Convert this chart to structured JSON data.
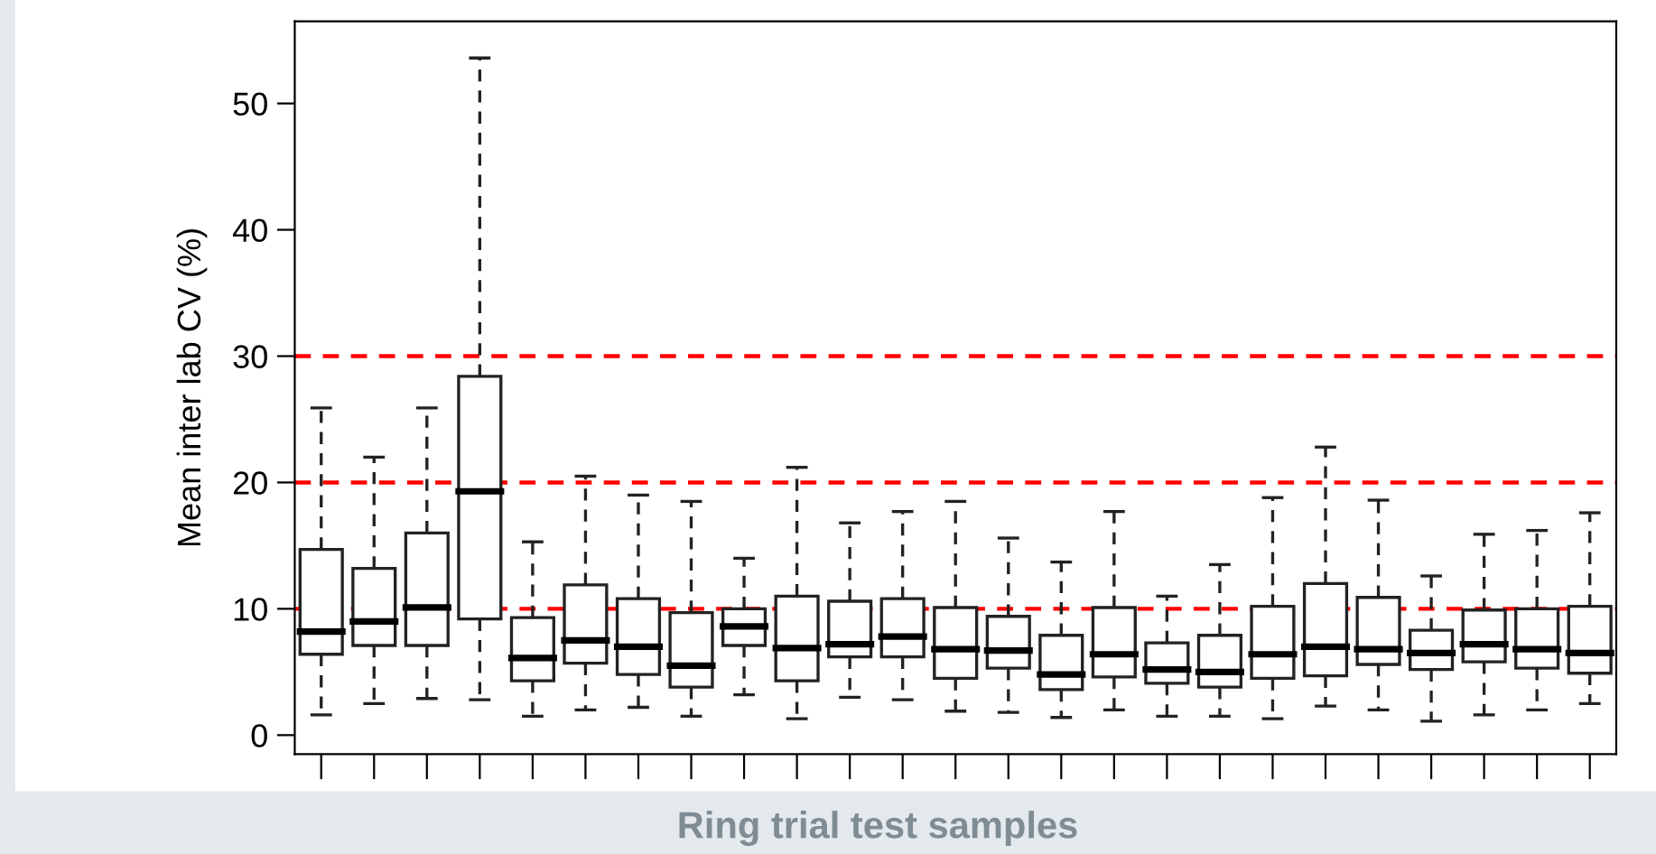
{
  "chart_data": {
    "type": "box",
    "xlabel": "Ring trial test samples",
    "ylabel": "Mean inter lab CV (%)",
    "categories": [
      null,
      null,
      null,
      null,
      null,
      null,
      null,
      null,
      null,
      null,
      null,
      null,
      null,
      null,
      null,
      null,
      null,
      null,
      null,
      null,
      null,
      null,
      null,
      null,
      null
    ],
    "boxes": [
      {
        "low": 1.6,
        "q1": 6.4,
        "median": 8.2,
        "q3": 14.7,
        "high": 25.9
      },
      {
        "low": 2.5,
        "q1": 7.1,
        "median": 9.0,
        "q3": 13.2,
        "high": 22.0
      },
      {
        "low": 2.9,
        "q1": 7.1,
        "median": 10.1,
        "q3": 16.0,
        "high": 25.9
      },
      {
        "low": 2.8,
        "q1": 9.2,
        "median": 19.3,
        "q3": 28.4,
        "high": 53.6
      },
      {
        "low": 1.5,
        "q1": 4.3,
        "median": 6.1,
        "q3": 9.3,
        "high": 15.3
      },
      {
        "low": 2.0,
        "q1": 5.7,
        "median": 7.5,
        "q3": 11.9,
        "high": 20.5
      },
      {
        "low": 2.2,
        "q1": 4.8,
        "median": 7.0,
        "q3": 10.8,
        "high": 19.0
      },
      {
        "low": 1.5,
        "q1": 3.8,
        "median": 5.5,
        "q3": 9.7,
        "high": 18.5
      },
      {
        "low": 3.2,
        "q1": 7.1,
        "median": 8.6,
        "q3": 10.0,
        "high": 14.0
      },
      {
        "low": 1.3,
        "q1": 4.3,
        "median": 6.9,
        "q3": 11.0,
        "high": 21.2
      },
      {
        "low": 3.0,
        "q1": 6.2,
        "median": 7.2,
        "q3": 10.6,
        "high": 16.8
      },
      {
        "low": 2.8,
        "q1": 6.2,
        "median": 7.8,
        "q3": 10.8,
        "high": 17.7
      },
      {
        "low": 1.9,
        "q1": 4.5,
        "median": 6.8,
        "q3": 10.1,
        "high": 18.5
      },
      {
        "low": 1.8,
        "q1": 5.3,
        "median": 6.7,
        "q3": 9.4,
        "high": 15.6
      },
      {
        "low": 1.4,
        "q1": 3.6,
        "median": 4.8,
        "q3": 7.9,
        "high": 13.7
      },
      {
        "low": 2.0,
        "q1": 4.6,
        "median": 6.4,
        "q3": 10.1,
        "high": 17.7
      },
      {
        "low": 1.5,
        "q1": 4.1,
        "median": 5.2,
        "q3": 7.3,
        "high": 11.0
      },
      {
        "low": 1.5,
        "q1": 3.8,
        "median": 5.0,
        "q3": 7.9,
        "high": 13.5
      },
      {
        "low": 1.3,
        "q1": 4.5,
        "median": 6.4,
        "q3": 10.2,
        "high": 18.8
      },
      {
        "low": 2.3,
        "q1": 4.7,
        "median": 7.0,
        "q3": 12.0,
        "high": 22.8
      },
      {
        "low": 2.0,
        "q1": 5.6,
        "median": 6.8,
        "q3": 10.9,
        "high": 18.6
      },
      {
        "low": 1.1,
        "q1": 5.2,
        "median": 6.5,
        "q3": 8.3,
        "high": 12.6
      },
      {
        "low": 1.6,
        "q1": 5.8,
        "median": 7.2,
        "q3": 9.9,
        "high": 15.9
      },
      {
        "low": 2.0,
        "q1": 5.3,
        "median": 6.8,
        "q3": 10.0,
        "high": 16.2
      },
      {
        "low": 2.5,
        "q1": 4.9,
        "median": 6.5,
        "q3": 10.2,
        "high": 17.6
      }
    ],
    "ylim": [
      -1.5,
      56.5
    ],
    "yticks": [
      0,
      10,
      20,
      30,
      40,
      50
    ],
    "ref_lines": [
      {
        "axis": "y",
        "value": 10,
        "color": "#ff0000",
        "line_style": "dashed"
      },
      {
        "axis": "y",
        "value": 20,
        "color": "#ff0000",
        "line_style": "dashed"
      },
      {
        "axis": "y",
        "value": 30,
        "color": "#ff0000",
        "line_style": "dashed"
      }
    ],
    "tick_labels": "y",
    "grid": false
  }
}
